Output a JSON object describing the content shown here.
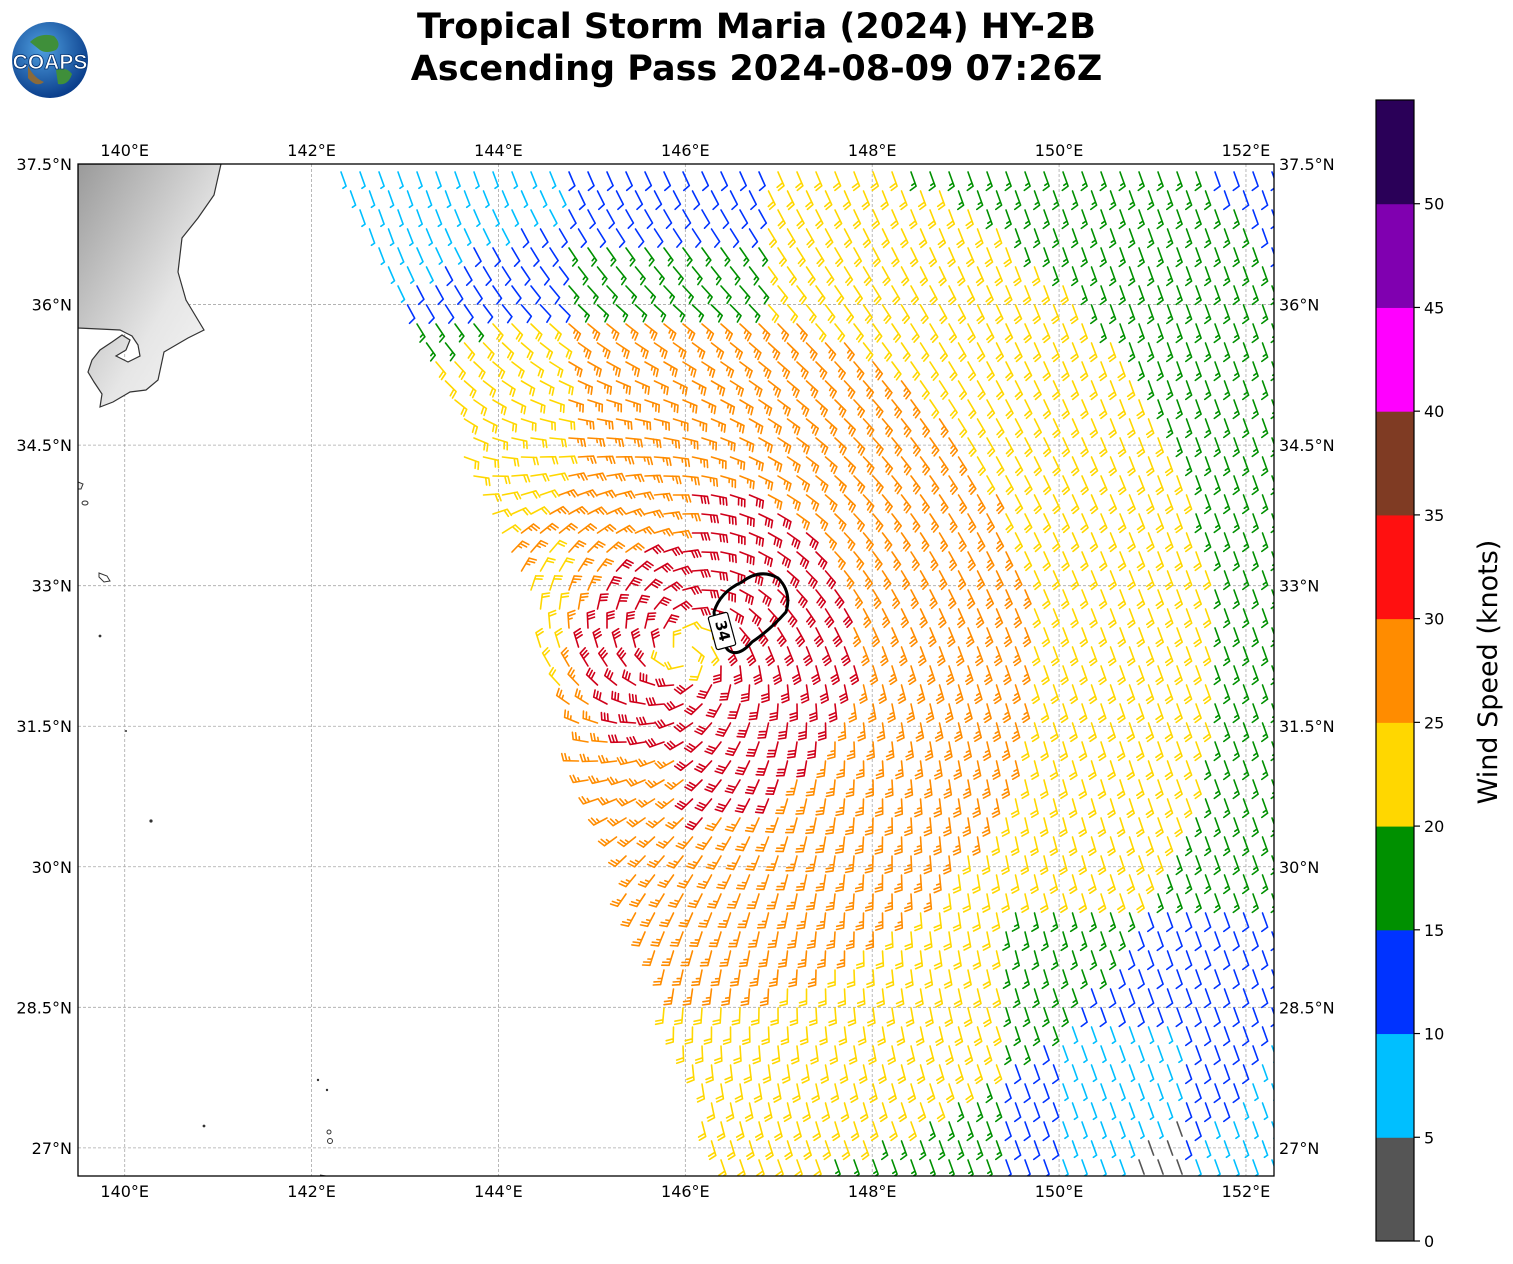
{
  "header": {
    "title_line1": "Tropical Storm Maria (2024) HY-2B",
    "title_line2": "Ascending Pass 2024-08-09 07:26Z",
    "logo_text": "COAPS"
  },
  "map": {
    "lon_range": [
      139.5,
      152.3
    ],
    "lat_range": [
      26.7,
      37.5
    ],
    "lon_ticks": [
      "140°E",
      "142°E",
      "144°E",
      "146°E",
      "148°E",
      "150°E",
      "152°E"
    ],
    "lat_ticks": [
      "37.5°N",
      "36°N",
      "34.5°N",
      "33°N",
      "31.5°N",
      "30°N",
      "28.5°N",
      "27°N"
    ],
    "contour_label": "34",
    "storm_center": {
      "lon": 146.0,
      "lat": 32.3
    }
  },
  "colorbar": {
    "label": "Wind Speed (knots)",
    "ticks": [
      "0",
      "5",
      "10",
      "15",
      "20",
      "25",
      "30",
      "35",
      "40",
      "45",
      "50"
    ],
    "colors": [
      "#555555",
      "#00bfff",
      "#0033ff",
      "#009000",
      "#ffd700",
      "#ff8c00",
      "#ff1010",
      "#7f3b23",
      "#ff00ff",
      "#8000b0",
      "#2a0058"
    ]
  },
  "wind_colors": {
    "0_5": "#555555",
    "5_10": "#00bfff",
    "10_15": "#0033ff",
    "15_20": "#009000",
    "20_25": "#ffd700",
    "25_30": "#ff8c00",
    "30_35": "#d0001a"
  }
}
